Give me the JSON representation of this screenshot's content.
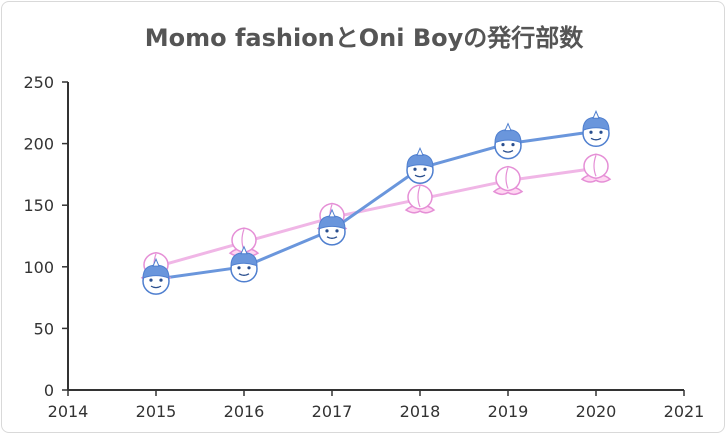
{
  "chart_data": {
    "type": "line",
    "title": "Momo fashionとOni Boyの発行部数",
    "xlabel": "",
    "ylabel": "",
    "x_ticks": [
      "2014",
      "2015",
      "2016",
      "2017",
      "2018",
      "2019",
      "2020",
      "2021"
    ],
    "y_ticks": [
      "0",
      "50",
      "100",
      "150",
      "200",
      "250"
    ],
    "xlim": [
      2014,
      2021
    ],
    "ylim": [
      0,
      250
    ],
    "grid": false,
    "legend": "none",
    "series": [
      {
        "marker": "peach",
        "color": "#f0b6e6",
        "x": [
          2015,
          2016,
          2017,
          2018,
          2019,
          2020
        ],
        "values": [
          100,
          120,
          140,
          155,
          170,
          180
        ]
      },
      {
        "marker": "oni-face",
        "color": "#6a96dc",
        "x": [
          2015,
          2016,
          2017,
          2018,
          2019,
          2020
        ],
        "values": [
          90,
          100,
          130,
          180,
          200,
          210
        ]
      }
    ]
  }
}
